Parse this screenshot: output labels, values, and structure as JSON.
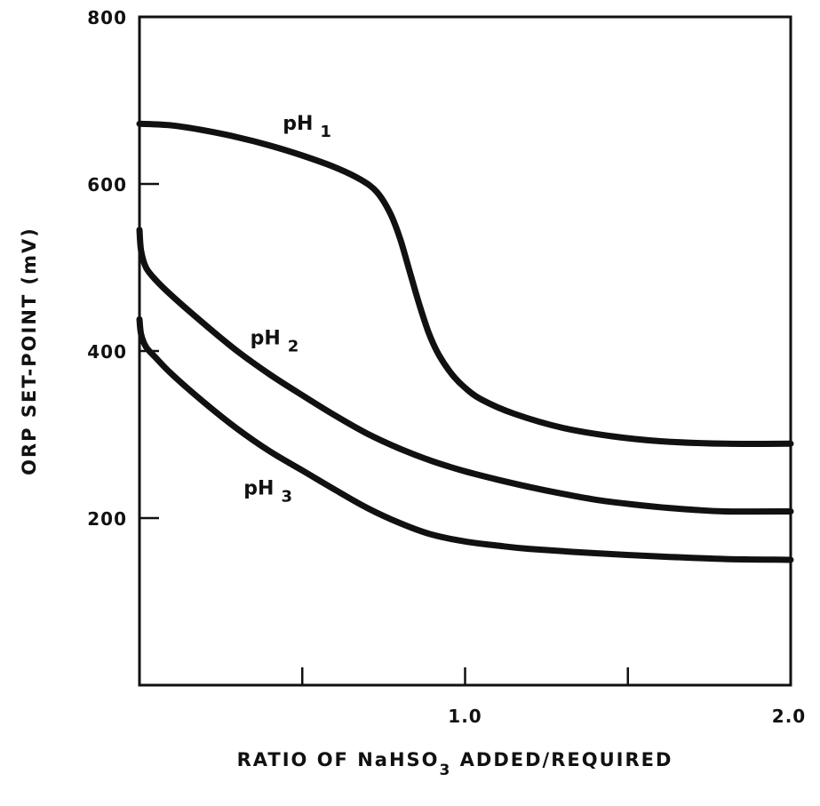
{
  "chart_data": {
    "type": "line",
    "title": "",
    "xlabel": "RATIO OF NaHSO",
    "xlabel_sub": "3",
    "xlabel_rest": " ADDED/REQUIRED",
    "ylabel": "ORP SET-POINT (mV)",
    "xlim": [
      0,
      2.0
    ],
    "ylim": [
      0,
      800
    ],
    "x_ticks": [
      0.5,
      1.0,
      1.5,
      2.0
    ],
    "x_tick_labels": [
      {
        "value": 1.0,
        "label": "1.0"
      },
      {
        "value": 2.0,
        "label": "2.0"
      }
    ],
    "y_tick_labels": [
      {
        "value": 200,
        "label": "200"
      },
      {
        "value": 400,
        "label": "400"
      },
      {
        "value": 600,
        "label": "600"
      },
      {
        "value": 800,
        "label": "800"
      }
    ],
    "grid": false,
    "legend": "none",
    "series": [
      {
        "name": "pH 1",
        "label_main": "pH",
        "label_sub": "1",
        "label_at": {
          "x": 0.44,
          "y": 665
        },
        "points": [
          {
            "x": 0.0,
            "y": 672
          },
          {
            "x": 0.1,
            "y": 670
          },
          {
            "x": 0.2,
            "y": 664
          },
          {
            "x": 0.3,
            "y": 656
          },
          {
            "x": 0.4,
            "y": 646
          },
          {
            "x": 0.5,
            "y": 634
          },
          {
            "x": 0.6,
            "y": 620
          },
          {
            "x": 0.68,
            "y": 605
          },
          {
            "x": 0.73,
            "y": 590
          },
          {
            "x": 0.77,
            "y": 565
          },
          {
            "x": 0.8,
            "y": 535
          },
          {
            "x": 0.83,
            "y": 495
          },
          {
            "x": 0.86,
            "y": 455
          },
          {
            "x": 0.89,
            "y": 420
          },
          {
            "x": 0.92,
            "y": 395
          },
          {
            "x": 0.96,
            "y": 372
          },
          {
            "x": 1.0,
            "y": 356
          },
          {
            "x": 1.05,
            "y": 342
          },
          {
            "x": 1.15,
            "y": 325
          },
          {
            "x": 1.3,
            "y": 308
          },
          {
            "x": 1.45,
            "y": 298
          },
          {
            "x": 1.6,
            "y": 292
          },
          {
            "x": 1.8,
            "y": 289
          },
          {
            "x": 2.0,
            "y": 289
          }
        ]
      },
      {
        "name": "pH 2",
        "label_main": "pH",
        "label_sub": "2",
        "label_at": {
          "x": 0.34,
          "y": 408
        },
        "points": [
          {
            "x": 0.0,
            "y": 545
          },
          {
            "x": 0.005,
            "y": 520
          },
          {
            "x": 0.02,
            "y": 500
          },
          {
            "x": 0.05,
            "y": 485
          },
          {
            "x": 0.1,
            "y": 466
          },
          {
            "x": 0.2,
            "y": 432
          },
          {
            "x": 0.3,
            "y": 400
          },
          {
            "x": 0.4,
            "y": 372
          },
          {
            "x": 0.5,
            "y": 347
          },
          {
            "x": 0.6,
            "y": 323
          },
          {
            "x": 0.7,
            "y": 301
          },
          {
            "x": 0.8,
            "y": 283
          },
          {
            "x": 0.9,
            "y": 268
          },
          {
            "x": 1.0,
            "y": 256
          },
          {
            "x": 1.1,
            "y": 246
          },
          {
            "x": 1.2,
            "y": 237
          },
          {
            "x": 1.3,
            "y": 229
          },
          {
            "x": 1.4,
            "y": 222
          },
          {
            "x": 1.5,
            "y": 217
          },
          {
            "x": 1.6,
            "y": 213
          },
          {
            "x": 1.7,
            "y": 210
          },
          {
            "x": 1.8,
            "y": 208
          },
          {
            "x": 2.0,
            "y": 208
          }
        ]
      },
      {
        "name": "pH 3",
        "label_main": "pH",
        "label_sub": "3",
        "label_at": {
          "x": 0.32,
          "y": 228
        },
        "points": [
          {
            "x": 0.0,
            "y": 438
          },
          {
            "x": 0.005,
            "y": 420
          },
          {
            "x": 0.02,
            "y": 405
          },
          {
            "x": 0.05,
            "y": 392
          },
          {
            "x": 0.1,
            "y": 372
          },
          {
            "x": 0.2,
            "y": 338
          },
          {
            "x": 0.3,
            "y": 307
          },
          {
            "x": 0.4,
            "y": 280
          },
          {
            "x": 0.5,
            "y": 257
          },
          {
            "x": 0.6,
            "y": 234
          },
          {
            "x": 0.7,
            "y": 212
          },
          {
            "x": 0.8,
            "y": 194
          },
          {
            "x": 0.9,
            "y": 180
          },
          {
            "x": 1.0,
            "y": 172
          },
          {
            "x": 1.1,
            "y": 167
          },
          {
            "x": 1.2,
            "y": 163
          },
          {
            "x": 1.4,
            "y": 158
          },
          {
            "x": 1.6,
            "y": 154
          },
          {
            "x": 1.8,
            "y": 151
          },
          {
            "x": 2.0,
            "y": 150
          }
        ]
      }
    ]
  }
}
